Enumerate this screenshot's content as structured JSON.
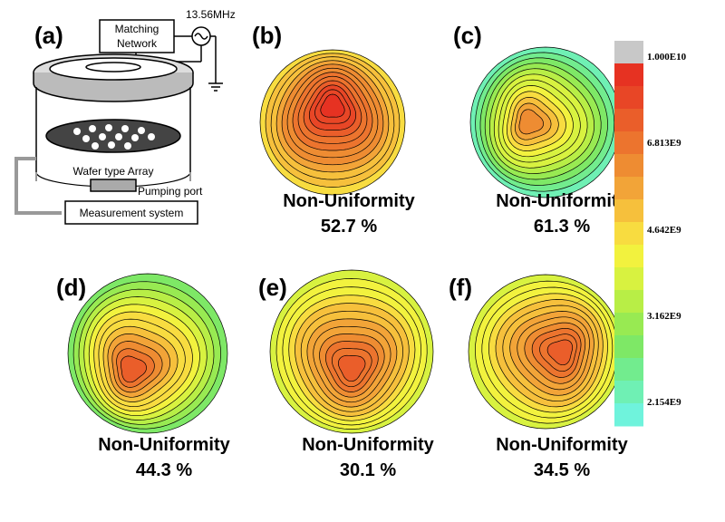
{
  "panels": {
    "a": {
      "label": "(a)",
      "source": "13.56MHz",
      "matching": [
        "Matching",
        "Network"
      ],
      "wafer": "Wafer type Array",
      "port": "Pumping port",
      "measurement": "Measurement system"
    },
    "maps": [
      {
        "label": "(b)",
        "caption": "Non-Uniformity",
        "value": "52.7 %"
      },
      {
        "label": "(c)",
        "caption": "Non-Uniformity",
        "value": "61.3 %"
      },
      {
        "label": "(d)",
        "caption": "Non-Uniformity",
        "value": "44.3 %"
      },
      {
        "label": "(e)",
        "caption": "Non-Uniformity",
        "value": "30.1 %"
      },
      {
        "label": "(f)",
        "caption": "Non-Uniformity",
        "value": "34.5 %"
      }
    ]
  },
  "colorbar": {
    "labels": [
      "1.000E10",
      "6.813E9",
      "4.642E9",
      "3.162E9",
      "2.154E9"
    ]
  }
}
